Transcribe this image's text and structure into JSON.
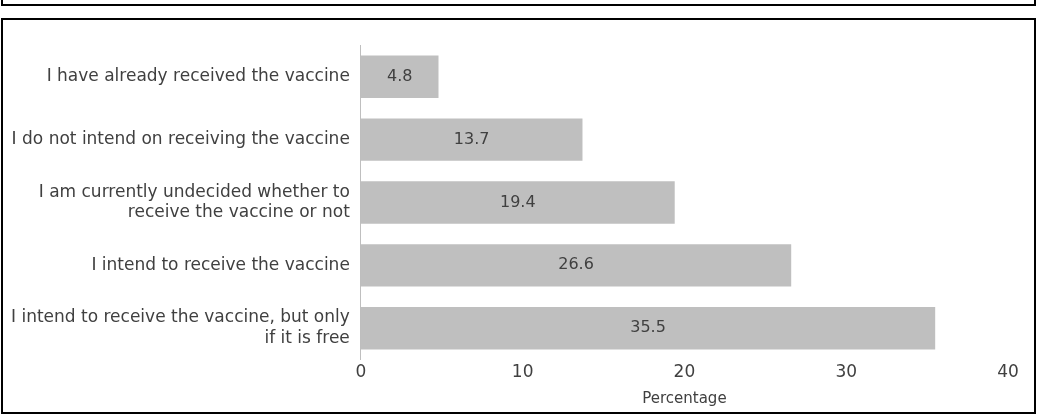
{
  "chart_data": {
    "type": "bar",
    "orientation": "horizontal",
    "xlabel": "Percentage",
    "categories": [
      "I have already received the vaccine",
      "I do not intend on receiving the vaccine",
      "I am currently undecided whether to receive the vaccine or not",
      "I intend to receive the vaccine",
      "I intend to receive the vaccine, but only if it is free"
    ],
    "values": [
      4.8,
      13.7,
      19.4,
      26.6,
      35.5
    ],
    "color": "#bfbfbf",
    "xlim": [
      0,
      40
    ],
    "xticks": [
      0,
      10,
      20,
      30,
      40
    ],
    "grid": false,
    "legend": false,
    "data_labels": true
  }
}
